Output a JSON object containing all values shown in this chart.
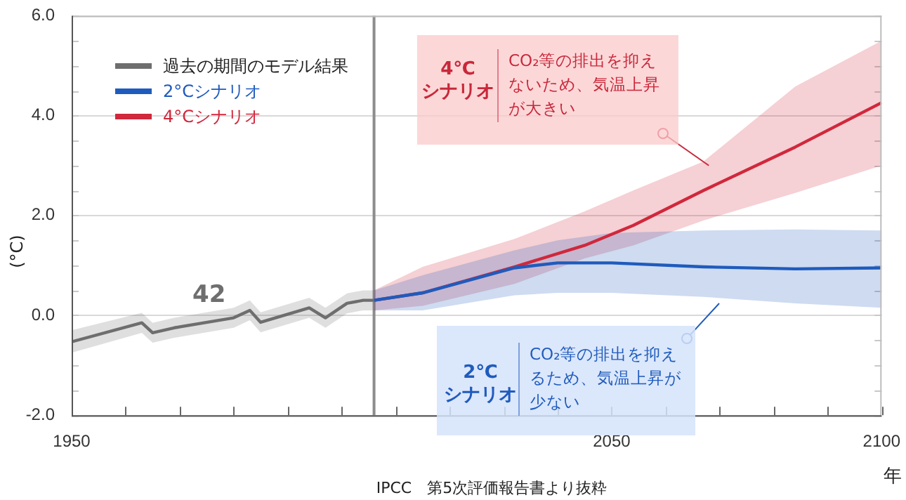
{
  "chart_data": {
    "type": "line",
    "xlabel": "年",
    "ylabel": "(°C)",
    "xlim": [
      1950,
      2100
    ],
    "ylim": [
      -2,
      6
    ],
    "xticks": [
      1950,
      {
        "value": 1960,
        "label": null
      },
      {
        "value": 1970,
        "label": null
      },
      {
        "value": 1980,
        "label": null
      },
      {
        "value": 1990,
        "label": null
      },
      {
        "value": 2000,
        "label": null
      },
      {
        "value": 2010,
        "label": null
      },
      {
        "value": 2020,
        "label": null
      },
      {
        "value": 2030,
        "label": null
      },
      {
        "value": 2040,
        "label": null
      },
      2050,
      {
        "value": 2060,
        "label": null
      },
      {
        "value": 2070,
        "label": null
      },
      {
        "value": 2080,
        "label": null
      },
      {
        "value": 2090,
        "label": null
      },
      2100
    ],
    "yticks": [
      {
        "value": -2,
        "label": "-2.0"
      },
      {
        "value": -1.5,
        "label": null
      },
      {
        "value": -1,
        "label": null
      },
      {
        "value": -0.5,
        "label": null
      },
      {
        "value": 0,
        "label": "0.0"
      },
      {
        "value": 0.5,
        "label": null
      },
      {
        "value": 1,
        "label": null
      },
      {
        "value": 1.5,
        "label": null
      },
      {
        "value": 2,
        "label": "2.0"
      },
      {
        "value": 2.5,
        "label": null
      },
      {
        "value": 3,
        "label": null
      },
      {
        "value": 3.5,
        "label": null
      },
      {
        "value": 4,
        "label": "4.0"
      },
      {
        "value": 4.5,
        "label": null
      },
      {
        "value": 5,
        "label": null
      },
      {
        "value": 5.5,
        "label": null
      },
      {
        "value": 6,
        "label": "6.0"
      }
    ],
    "grid": "y",
    "legend": "top left",
    "marker": "none",
    "line_style": "solid",
    "ref_lines": [
      {
        "axis": "x",
        "value": 2006,
        "color": "#8c8c8c"
      }
    ],
    "series": [
      {
        "name": "過去の期間のモデル結果",
        "color": "#6e6e6e",
        "x": [
          1950,
          1963,
          1965,
          1969,
          1980,
          1983,
          1985,
          1994,
          1997,
          2001,
          2004,
          2006
        ],
        "values": [
          -0.53,
          -0.15,
          -0.35,
          -0.25,
          -0.05,
          0.1,
          -0.14,
          0.15,
          -0.05,
          0.24,
          0.3,
          0.3
        ],
        "lower": [
          -0.75,
          -0.35,
          -0.55,
          -0.45,
          -0.25,
          -0.1,
          -0.34,
          -0.05,
          -0.25,
          0.04,
          0.1,
          0.1
        ],
        "upper": [
          -0.3,
          0.05,
          -0.15,
          -0.05,
          0.15,
          0.3,
          0.06,
          0.35,
          0.15,
          0.44,
          0.5,
          0.5
        ]
      },
      {
        "name": "2°Cシナリオ",
        "color": "#1f5bbd",
        "x": [
          2006,
          2015,
          2032,
          2040,
          2050,
          2067,
          2084,
          2100
        ],
        "values": [
          0.3,
          0.45,
          0.95,
          1.05,
          1.05,
          0.97,
          0.93,
          0.95
        ],
        "lower": [
          0.1,
          0.1,
          0.4,
          0.45,
          0.45,
          0.37,
          0.24,
          0.15
        ],
        "upper": [
          0.5,
          0.8,
          1.3,
          1.5,
          1.65,
          1.7,
          1.72,
          1.7
        ]
      },
      {
        "name": "4°Cシナリオ",
        "color": "#d0283c",
        "x": [
          2006,
          2015,
          2032,
          2045,
          2054,
          2067,
          2084,
          2100
        ],
        "values": [
          0.3,
          0.45,
          0.97,
          1.4,
          1.8,
          2.5,
          3.37,
          4.26
        ],
        "lower": [
          0.1,
          0.19,
          0.63,
          1.14,
          1.4,
          1.9,
          2.45,
          3.0
        ],
        "upper": [
          0.5,
          0.97,
          1.53,
          2.08,
          2.5,
          3.08,
          4.58,
          5.5
        ]
      }
    ],
    "annotations": [
      "4℃\nシナリオ",
      {
        "text": "CO₂等の排出を抑えないため、気温上昇が大きい",
        "x": 2068,
        "y": 3.0
      },
      "2℃\nシナリオ",
      "CO₂等の排出を抑えるため、気温上昇が少ない",
      "42",
      "IPCC　第5次評価報告書より抜粋"
    ]
  }
}
